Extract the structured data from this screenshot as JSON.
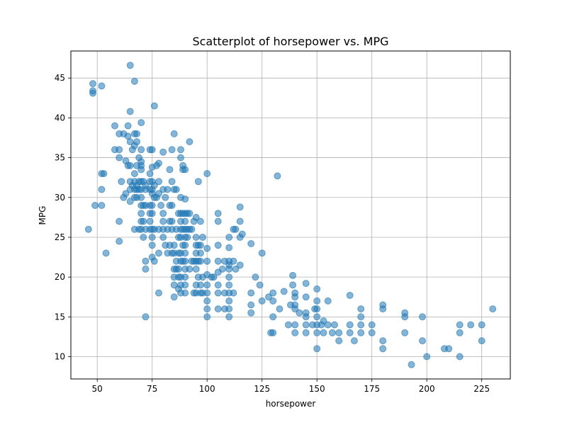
{
  "chart_data": {
    "type": "scatter",
    "title": "Scatterplot of horsepower vs. MPG",
    "xlabel": "horsepower",
    "ylabel": "MPG",
    "xlim": [
      38,
      238
    ],
    "ylim": [
      7.2,
      48.4
    ],
    "x_ticks": [
      50,
      75,
      100,
      125,
      150,
      175,
      200,
      225
    ],
    "y_ticks": [
      10,
      15,
      20,
      25,
      30,
      35,
      40,
      45
    ],
    "grid": true,
    "colors": {
      "marker_fill": "#1f77b4",
      "marker_stroke": "#1f77b4",
      "grid": "#b0b0b0",
      "axes": "#000000"
    },
    "points": [
      [
        46,
        26
      ],
      [
        48,
        44.3
      ],
      [
        48,
        43.4
      ],
      [
        48,
        43.1
      ],
      [
        49,
        29
      ],
      [
        52,
        44
      ],
      [
        52,
        33
      ],
      [
        52,
        31
      ],
      [
        52,
        29
      ],
      [
        53,
        33
      ],
      [
        54,
        23
      ],
      [
        58,
        39
      ],
      [
        58,
        36
      ],
      [
        60,
        38
      ],
      [
        60,
        36
      ],
      [
        60,
        35
      ],
      [
        60,
        27
      ],
      [
        60,
        24.5
      ],
      [
        61,
        32
      ],
      [
        62,
        38
      ],
      [
        62,
        30
      ],
      [
        63,
        34.6
      ],
      [
        63,
        30.5
      ],
      [
        64,
        39
      ],
      [
        64,
        34
      ],
      [
        64,
        37.7
      ],
      [
        65,
        46.6
      ],
      [
        65,
        40.8
      ],
      [
        65,
        37
      ],
      [
        65,
        34
      ],
      [
        65,
        32
      ],
      [
        65,
        31
      ],
      [
        65,
        29.5
      ],
      [
        66,
        36
      ],
      [
        66,
        31.5
      ],
      [
        67,
        44.6
      ],
      [
        67,
        38
      ],
      [
        67,
        36.5
      ],
      [
        67,
        33
      ],
      [
        67,
        32
      ],
      [
        67,
        31
      ],
      [
        67,
        30
      ],
      [
        67,
        26
      ],
      [
        68,
        38
      ],
      [
        68,
        37
      ],
      [
        68,
        34
      ],
      [
        68,
        31.5
      ],
      [
        68,
        31
      ],
      [
        68,
        30
      ],
      [
        69,
        35
      ],
      [
        69,
        32
      ],
      [
        69,
        31
      ],
      [
        69,
        26
      ],
      [
        70,
        39.4
      ],
      [
        70,
        36
      ],
      [
        70,
        34.5
      ],
      [
        70,
        34
      ],
      [
        70,
        33.5
      ],
      [
        70,
        32
      ],
      [
        70,
        31
      ],
      [
        70,
        30
      ],
      [
        70,
        29
      ],
      [
        70,
        28
      ],
      [
        70,
        27
      ],
      [
        70,
        26
      ],
      [
        71,
        32
      ],
      [
        71,
        29
      ],
      [
        71,
        27
      ],
      [
        71,
        25
      ],
      [
        72,
        31.5
      ],
      [
        72,
        31
      ],
      [
        72,
        29
      ],
      [
        72,
        26
      ],
      [
        72,
        22
      ],
      [
        72,
        21
      ],
      [
        72,
        15
      ],
      [
        74,
        36
      ],
      [
        74,
        33
      ],
      [
        74,
        32
      ],
      [
        74,
        31
      ],
      [
        74,
        29
      ],
      [
        74,
        28
      ],
      [
        74,
        27
      ],
      [
        74,
        26
      ],
      [
        75,
        36
      ],
      [
        75,
        33.8
      ],
      [
        75,
        32
      ],
      [
        75,
        31
      ],
      [
        75,
        30.5
      ],
      [
        75,
        29
      ],
      [
        75,
        28
      ],
      [
        75,
        26
      ],
      [
        75,
        25
      ],
      [
        75,
        24
      ],
      [
        75,
        22.5
      ],
      [
        76,
        41.5
      ],
      [
        76,
        31.5
      ],
      [
        76,
        30
      ],
      [
        76,
        26
      ],
      [
        76,
        22
      ],
      [
        77,
        34
      ],
      [
        77,
        30
      ],
      [
        78,
        34.3
      ],
      [
        78,
        32
      ],
      [
        78,
        30.5
      ],
      [
        78,
        26
      ],
      [
        78,
        23
      ],
      [
        78,
        18
      ],
      [
        79,
        29
      ],
      [
        80,
        35.7
      ],
      [
        80,
        31
      ],
      [
        80,
        28
      ],
      [
        80,
        27
      ],
      [
        80,
        25
      ],
      [
        80,
        26
      ],
      [
        81,
        30
      ],
      [
        81,
        24
      ],
      [
        82,
        31
      ],
      [
        82,
        26
      ],
      [
        82,
        23
      ],
      [
        83,
        33.5
      ],
      [
        83,
        29
      ],
      [
        83,
        27
      ],
      [
        83,
        24
      ],
      [
        84,
        36
      ],
      [
        84,
        32
      ],
      [
        84,
        29
      ],
      [
        84,
        27
      ],
      [
        84,
        26
      ],
      [
        84,
        23
      ],
      [
        85,
        38
      ],
      [
        85,
        31
      ],
      [
        85,
        24
      ],
      [
        85,
        23
      ],
      [
        85,
        21
      ],
      [
        85,
        20
      ],
      [
        85,
        19
      ],
      [
        85,
        17.5
      ],
      [
        86,
        31
      ],
      [
        86,
        26
      ],
      [
        86,
        22
      ],
      [
        86,
        21
      ],
      [
        87,
        28
      ],
      [
        87,
        25
      ],
      [
        87,
        23
      ],
      [
        87,
        21
      ],
      [
        87,
        20
      ],
      [
        87,
        18.5
      ],
      [
        88,
        36
      ],
      [
        88,
        35
      ],
      [
        88,
        30
      ],
      [
        88,
        28
      ],
      [
        88,
        27
      ],
      [
        88,
        26
      ],
      [
        88,
        25
      ],
      [
        88,
        23
      ],
      [
        88,
        22
      ],
      [
        88,
        20
      ],
      [
        88,
        19
      ],
      [
        88,
        18
      ],
      [
        89,
        34
      ],
      [
        89,
        33.5
      ],
      [
        89,
        28
      ],
      [
        89,
        26
      ],
      [
        89,
        24
      ],
      [
        89,
        22
      ],
      [
        90,
        33.5
      ],
      [
        90,
        29.8
      ],
      [
        90,
        28
      ],
      [
        90,
        27
      ],
      [
        90,
        26
      ],
      [
        90,
        25
      ],
      [
        90,
        24
      ],
      [
        90,
        23
      ],
      [
        90,
        22
      ],
      [
        90,
        21
      ],
      [
        90,
        20
      ],
      [
        90,
        19
      ],
      [
        90,
        18
      ],
      [
        91,
        28
      ],
      [
        91,
        26
      ],
      [
        91,
        25
      ],
      [
        92,
        37
      ],
      [
        92,
        28
      ],
      [
        92,
        26
      ],
      [
        92,
        21
      ],
      [
        93,
        26
      ],
      [
        93,
        22
      ],
      [
        94,
        27
      ],
      [
        94,
        22
      ],
      [
        94,
        18
      ],
      [
        95,
        27.5
      ],
      [
        95,
        25
      ],
      [
        95,
        24
      ],
      [
        95,
        23
      ],
      [
        95,
        22
      ],
      [
        95,
        21
      ],
      [
        95,
        19
      ],
      [
        95,
        18
      ],
      [
        96,
        32
      ],
      [
        96,
        24
      ],
      [
        96,
        22
      ],
      [
        96,
        20
      ],
      [
        97,
        27
      ],
      [
        97,
        24
      ],
      [
        97,
        23
      ],
      [
        97,
        22
      ],
      [
        97,
        19
      ],
      [
        97,
        18
      ],
      [
        98,
        25
      ],
      [
        98,
        20
      ],
      [
        98,
        18
      ],
      [
        100,
        33
      ],
      [
        100,
        23.6
      ],
      [
        100,
        22
      ],
      [
        100,
        20.3
      ],
      [
        100,
        19
      ],
      [
        100,
        18
      ],
      [
        100,
        17
      ],
      [
        100,
        16
      ],
      [
        100,
        15
      ],
      [
        102,
        20
      ],
      [
        103,
        20
      ],
      [
        105,
        28
      ],
      [
        105,
        27
      ],
      [
        105,
        24
      ],
      [
        105,
        22
      ],
      [
        105,
        20.6
      ],
      [
        105,
        19
      ],
      [
        105,
        18
      ],
      [
        105,
        16
      ],
      [
        107,
        21
      ],
      [
        108,
        22
      ],
      [
        108,
        18
      ],
      [
        108,
        16
      ],
      [
        110,
        25
      ],
      [
        110,
        23.7
      ],
      [
        110,
        22
      ],
      [
        110,
        21.5
      ],
      [
        110,
        21
      ],
      [
        110,
        20
      ],
      [
        110,
        19
      ],
      [
        110,
        18
      ],
      [
        110,
        17
      ],
      [
        110,
        16
      ],
      [
        110,
        15
      ],
      [
        112,
        26
      ],
      [
        112,
        22
      ],
      [
        112,
        18
      ],
      [
        113,
        21
      ],
      [
        113,
        26
      ],
      [
        115,
        28.8
      ],
      [
        115,
        27
      ],
      [
        115,
        25
      ],
      [
        115,
        21.5
      ],
      [
        116,
        25.4
      ],
      [
        120,
        24.2
      ],
      [
        120,
        18
      ],
      [
        120,
        16.5
      ],
      [
        120,
        15.5
      ],
      [
        122,
        20
      ],
      [
        124,
        19
      ],
      [
        125,
        23
      ],
      [
        125,
        17
      ],
      [
        128,
        17.5
      ],
      [
        129,
        13
      ],
      [
        130,
        18
      ],
      [
        130,
        17
      ],
      [
        130,
        15
      ],
      [
        130,
        13
      ],
      [
        132,
        32.7
      ],
      [
        133,
        16
      ],
      [
        135,
        18.2
      ],
      [
        137,
        14
      ],
      [
        138,
        16.5
      ],
      [
        139,
        20.2
      ],
      [
        139,
        19
      ],
      [
        140,
        18
      ],
      [
        140,
        17.5
      ],
      [
        140,
        16.5
      ],
      [
        140,
        16
      ],
      [
        140,
        14
      ],
      [
        140,
        13
      ],
      [
        142,
        15.5
      ],
      [
        145,
        19.2
      ],
      [
        145,
        17.5
      ],
      [
        145,
        15.5
      ],
      [
        145,
        15
      ],
      [
        145,
        14
      ],
      [
        145,
        13
      ],
      [
        148,
        14
      ],
      [
        149,
        16
      ],
      [
        150,
        18.5
      ],
      [
        150,
        17
      ],
      [
        150,
        16
      ],
      [
        150,
        15
      ],
      [
        150,
        14
      ],
      [
        150,
        13
      ],
      [
        150,
        11
      ],
      [
        152,
        14
      ],
      [
        153,
        13
      ],
      [
        153,
        14.5
      ],
      [
        155,
        14
      ],
      [
        155,
        17
      ],
      [
        157,
        13
      ],
      [
        158,
        14
      ],
      [
        160,
        13
      ],
      [
        160,
        12
      ],
      [
        165,
        17.7
      ],
      [
        165,
        14
      ],
      [
        165,
        13
      ],
      [
        167,
        12
      ],
      [
        170,
        16
      ],
      [
        170,
        15
      ],
      [
        170,
        14
      ],
      [
        170,
        13
      ],
      [
        175,
        14
      ],
      [
        175,
        13
      ],
      [
        180,
        16.5
      ],
      [
        180,
        16
      ],
      [
        180,
        12
      ],
      [
        180,
        11
      ],
      [
        190,
        15.5
      ],
      [
        190,
        15
      ],
      [
        190,
        13
      ],
      [
        193,
        9
      ],
      [
        198,
        15
      ],
      [
        198,
        12
      ],
      [
        200,
        10
      ],
      [
        208,
        11
      ],
      [
        210,
        11
      ],
      [
        215,
        14
      ],
      [
        215,
        13
      ],
      [
        215,
        10
      ],
      [
        220,
        14
      ],
      [
        225,
        14
      ],
      [
        225,
        12
      ],
      [
        230,
        16
      ]
    ]
  }
}
